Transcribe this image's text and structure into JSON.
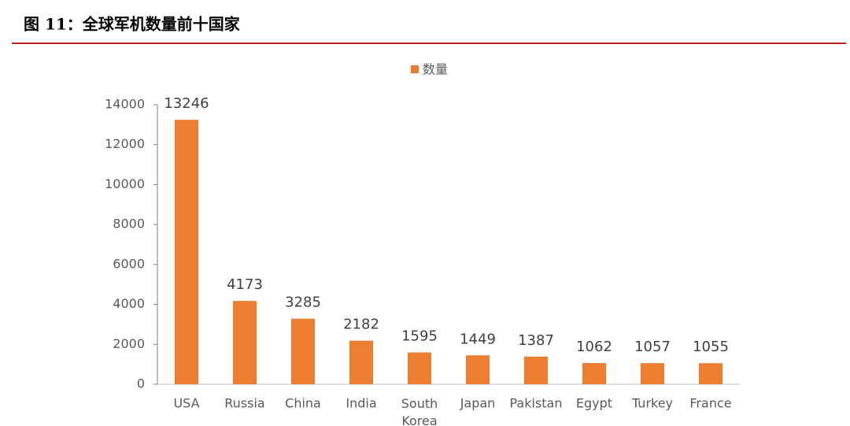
{
  "chart_data": {
    "type": "bar",
    "title": "图 11：全球军机数量前十国家",
    "categories": [
      "USA",
      "Russia",
      "China",
      "India",
      "South Korea",
      "Japan",
      "Pakistan",
      "Egypt",
      "Turkey",
      "France"
    ],
    "series": [
      {
        "name": "数量",
        "color": "#ed7d31",
        "values": [
          13246,
          4173,
          3285,
          2182,
          1595,
          1449,
          1387,
          1062,
          1057,
          1055
        ]
      }
    ],
    "ylim": [
      0,
      14000
    ],
    "yticks": [
      0,
      2000,
      4000,
      6000,
      8000,
      10000,
      12000,
      14000
    ],
    "grid": false,
    "legend": "top",
    "data_labels": true
  }
}
